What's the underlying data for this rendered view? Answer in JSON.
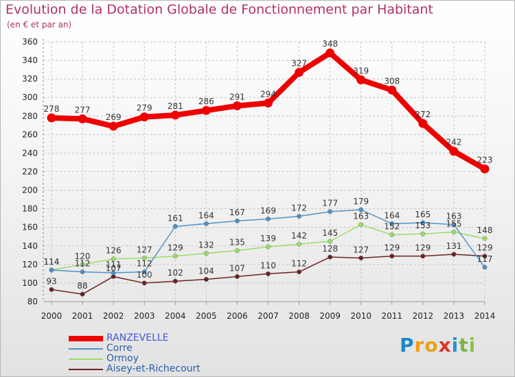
{
  "header": {
    "title": "Evolution de la Dotation Globale de Fonctionnement par Habitant",
    "subtitle": "(en € et par an)"
  },
  "logo_letters": [
    {
      "ch": "P",
      "color": "#1e88c9"
    },
    {
      "ch": "r",
      "color": "#f39c12"
    },
    {
      "ch": "o",
      "color": "#e8a21a"
    },
    {
      "ch": "x",
      "color": "#d9362b"
    },
    {
      "ch": "i",
      "color": "#2a8fd1"
    },
    {
      "ch": "t",
      "color": "#7cb342"
    },
    {
      "ch": "i",
      "color": "#8bc34a"
    }
  ],
  "chart_data": {
    "type": "line",
    "title": "Evolution de la Dotation Globale de Fonctionnement par Habitant",
    "subtitle": "(en € et par an)",
    "xlabel": "",
    "ylabel": "",
    "ylim": [
      80,
      360
    ],
    "yticks": [
      80,
      100,
      120,
      140,
      160,
      180,
      200,
      220,
      240,
      260,
      280,
      300,
      320,
      340,
      360
    ],
    "categories": [
      "2000",
      "2001",
      "2002",
      "2003",
      "2004",
      "2005",
      "2006",
      "2007",
      "2008",
      "2009",
      "2010",
      "2011",
      "2012",
      "2013",
      "2014"
    ],
    "grid": true,
    "legend_position": "bottom-left",
    "series": [
      {
        "name": "RANZEVELLE",
        "color": "#ee0000",
        "values": [
          278,
          277,
          269,
          279,
          281,
          286,
          291,
          294,
          327,
          348,
          319,
          308,
          272,
          242,
          223
        ]
      },
      {
        "name": "Corre",
        "color": "#4f92c8",
        "values": [
          114,
          112,
          111,
          112,
          161,
          164,
          167,
          169,
          172,
          177,
          179,
          164,
          165,
          163,
          117
        ]
      },
      {
        "name": "Ormoy",
        "color": "#99dd66",
        "values": [
          114,
          120,
          126,
          127,
          129,
          132,
          135,
          139,
          142,
          145,
          163,
          152,
          153,
          155,
          148
        ]
      },
      {
        "name": "Aisey-et-Richecourt",
        "color": "#6b2222",
        "values": [
          93,
          88,
          107,
          100,
          102,
          104,
          107,
          110,
          112,
          128,
          127,
          129,
          129,
          131,
          129
        ]
      }
    ]
  }
}
